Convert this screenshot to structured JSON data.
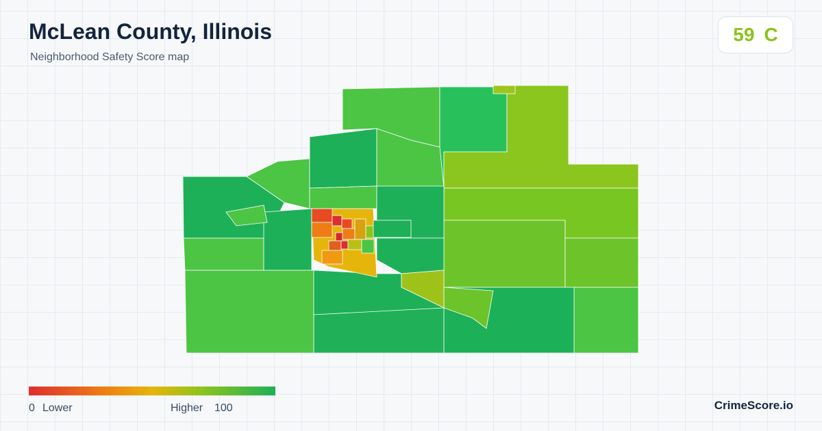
{
  "header": {
    "title": "McLean County, Illinois",
    "subtitle": "Neighborhood Safety Score map"
  },
  "score": {
    "value": 59,
    "grade": "C"
  },
  "legend": {
    "min": 0,
    "min_label": "Lower",
    "max_label": "Higher",
    "max": 100
  },
  "brand": "CrimeScore.io"
}
